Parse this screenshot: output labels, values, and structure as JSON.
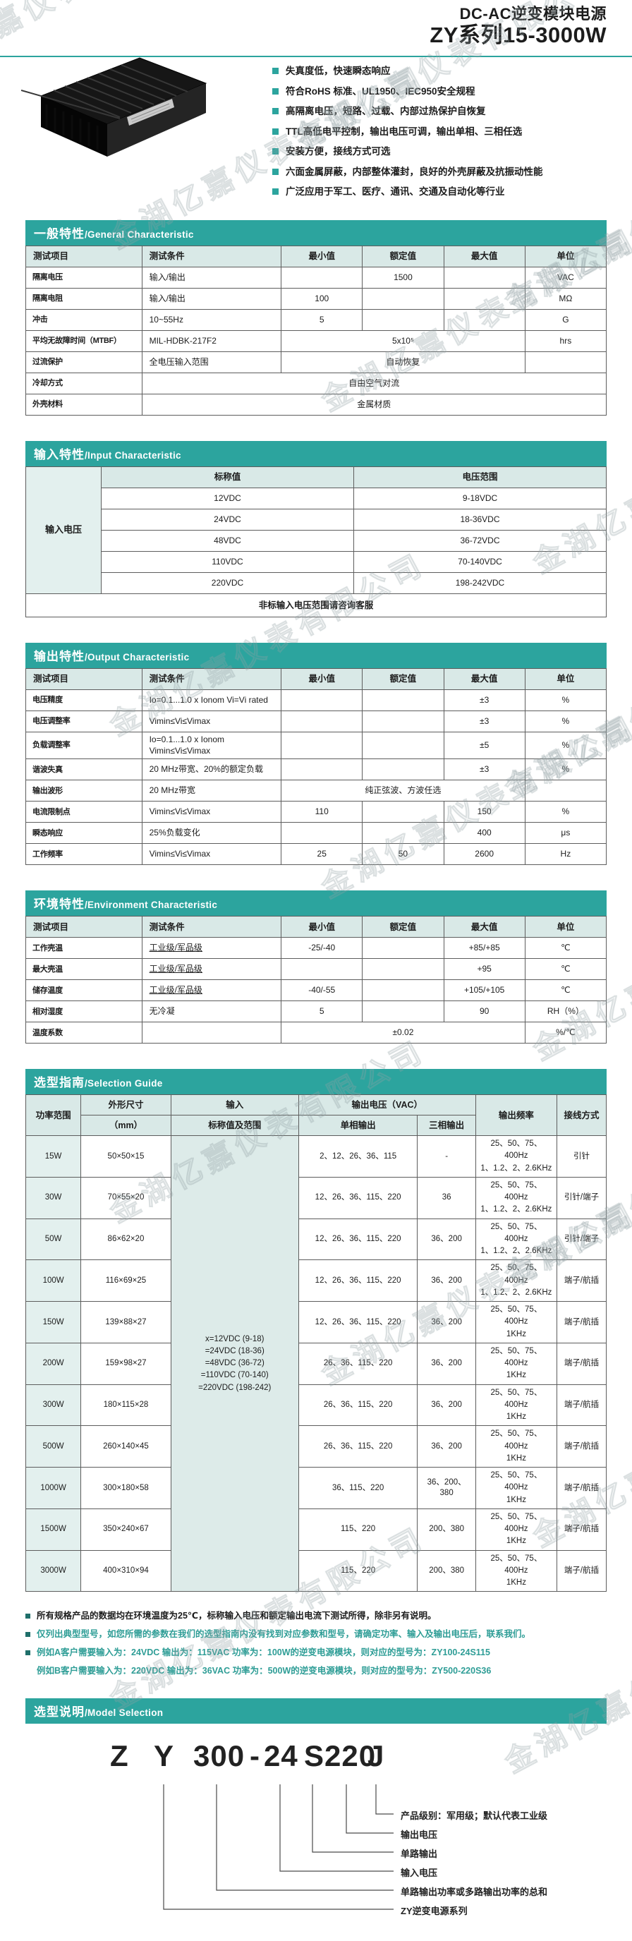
{
  "watermark": "金湖亿嘉仪表有限公司",
  "header": {
    "title_line1": "DC-AC逆变模块电源",
    "title_line2": "ZY系列15-3000W",
    "features": [
      "失真度低，快速瞬态响应",
      "符合RoHS 标准、UL1950、IEC950安全规程",
      "高隔离电压，短路、过载、内部过热保护自恢复",
      "TTL高低电平控制，输出电压可调，输出单相、三相任选",
      "安装方便，接线方式可选",
      "六面金属屏蔽，内部整体灌封，良好的外壳屏蔽及抗振动性能",
      "广泛应用于军工、医疗、通讯、交通及自动化等行业"
    ]
  },
  "tables": {
    "general": {
      "title_zh": "一般特性",
      "title_en": "/General Characteristic",
      "col_widths": [
        "20%",
        "24%",
        "14%",
        "14%",
        "14%",
        "14%"
      ],
      "rows": [
        [
          {
            "t": "测试项目",
            "c": "th l"
          },
          {
            "t": "测试条件",
            "c": "th l"
          },
          {
            "t": "最小值",
            "c": "th"
          },
          {
            "t": "额定值",
            "c": "th"
          },
          {
            "t": "最大值",
            "c": "th"
          },
          {
            "t": "单位",
            "c": "th"
          }
        ],
        [
          {
            "t": "隔离电压",
            "c": "item"
          },
          {
            "t": "输入/输出",
            "c": "l"
          },
          {
            "t": ""
          },
          {
            "t": "1500"
          },
          {
            "t": ""
          },
          {
            "t": "VAC"
          }
        ],
        [
          {
            "t": "隔离电阻",
            "c": "item"
          },
          {
            "t": "输入/输出",
            "c": "l"
          },
          {
            "t": "100"
          },
          {
            "t": ""
          },
          {
            "t": ""
          },
          {
            "t": "MΩ"
          }
        ],
        [
          {
            "t": "冲击",
            "c": "item"
          },
          {
            "t": "10~55Hz",
            "c": "l"
          },
          {
            "t": "5"
          },
          {
            "t": ""
          },
          {
            "t": ""
          },
          {
            "t": "G"
          }
        ],
        [
          {
            "t": "平均无故障时间（MTBF）",
            "c": "item"
          },
          {
            "t": "MIL-HDBK-217F2",
            "c": "l"
          },
          {
            "t": "5x10⁵",
            "cs": 3
          },
          {
            "t": "hrs"
          }
        ],
        [
          {
            "t": "过流保护",
            "c": "item"
          },
          {
            "t": "全电压输入范围",
            "c": "l"
          },
          {
            "t": "自动恢复",
            "cs": 3
          },
          {
            "t": ""
          }
        ],
        [
          {
            "t": "冷却方式",
            "c": "item"
          },
          {
            "t": "自由空气对流",
            "cs": 5
          }
        ],
        [
          {
            "t": "外壳材料",
            "c": "item"
          },
          {
            "t": "金属材质",
            "cs": 5
          }
        ]
      ]
    },
    "input": {
      "title_zh": "输入特性",
      "title_en": "/Input Characteristic",
      "col_widths": [
        "13%",
        "43.5%",
        "43.5%"
      ],
      "rows": [
        [
          {
            "t": "输入电压",
            "rs": 6,
            "c": "side"
          },
          {
            "t": "标称值",
            "c": "th"
          },
          {
            "t": "电压范围",
            "c": "th"
          }
        ],
        [
          {
            "t": "12VDC"
          },
          {
            "t": "9-18VDC"
          }
        ],
        [
          {
            "t": "24VDC"
          },
          {
            "t": "18-36VDC"
          }
        ],
        [
          {
            "t": "48VDC"
          },
          {
            "t": "36-72VDC"
          }
        ],
        [
          {
            "t": "110VDC"
          },
          {
            "t": "70-140VDC"
          }
        ],
        [
          {
            "t": "220VDC"
          },
          {
            "t": "198-242VDC"
          }
        ],
        [
          {
            "t": "非标输入电压范围请咨询客服",
            "cs": 3,
            "c": "foot"
          }
        ]
      ]
    },
    "output": {
      "title_zh": "输出特性",
      "title_en": "/Output Characteristic",
      "col_widths": [
        "20%",
        "24%",
        "14%",
        "14%",
        "14%",
        "14%"
      ],
      "rows": [
        [
          {
            "t": "测试项目",
            "c": "th l"
          },
          {
            "t": "测试条件",
            "c": "th l"
          },
          {
            "t": "最小值",
            "c": "th"
          },
          {
            "t": "额定值",
            "c": "th"
          },
          {
            "t": "最大值",
            "c": "th"
          },
          {
            "t": "单位",
            "c": "th"
          }
        ],
        [
          {
            "t": "电压精度",
            "c": "item"
          },
          {
            "t": "Io=0.1...1.0 x Ionom Vi=Vi rated",
            "c": "l"
          },
          {
            "t": ""
          },
          {
            "t": ""
          },
          {
            "t": "±3"
          },
          {
            "t": "%"
          }
        ],
        [
          {
            "t": "电压调整率",
            "c": "item"
          },
          {
            "t": "Vimin≤Vi≤Vimax",
            "c": "l"
          },
          {
            "t": ""
          },
          {
            "t": ""
          },
          {
            "t": "±3"
          },
          {
            "t": "%"
          }
        ],
        [
          {
            "t": "负载调整率",
            "c": "item"
          },
          {
            "t": "Io=0.1...1.0 x Ionom Vimin≤Vi≤Vimax",
            "c": "l"
          },
          {
            "t": ""
          },
          {
            "t": ""
          },
          {
            "t": "±5"
          },
          {
            "t": "%"
          }
        ],
        [
          {
            "t": "谐波失真",
            "c": "item"
          },
          {
            "t": "20 MHz带宽、20%的额定负载",
            "c": "l"
          },
          {
            "t": ""
          },
          {
            "t": ""
          },
          {
            "t": "±3"
          },
          {
            "t": "%"
          }
        ],
        [
          {
            "t": "输出波形",
            "c": "item"
          },
          {
            "t": "20 MHz带宽",
            "c": "l"
          },
          {
            "t": "纯正弦波、方波任选",
            "cs": 3
          },
          {
            "t": ""
          }
        ],
        [
          {
            "t": "电流限制点",
            "c": "item"
          },
          {
            "t": "Vimin≤Vi≤Vimax",
            "c": "l"
          },
          {
            "t": "110"
          },
          {
            "t": ""
          },
          {
            "t": "150"
          },
          {
            "t": "%"
          }
        ],
        [
          {
            "t": "瞬态响应",
            "c": "item"
          },
          {
            "t": "25%负载变化",
            "c": "l"
          },
          {
            "t": ""
          },
          {
            "t": ""
          },
          {
            "t": "400"
          },
          {
            "t": "μs"
          }
        ],
        [
          {
            "t": "工作频率",
            "c": "item"
          },
          {
            "t": "Vimin≤Vi≤Vimax",
            "c": "l"
          },
          {
            "t": "25"
          },
          {
            "t": "50"
          },
          {
            "t": "2600"
          },
          {
            "t": "Hz"
          }
        ]
      ]
    },
    "environment": {
      "title_zh": "环境特性",
      "title_en": "/Environment Characteristic",
      "col_widths": [
        "20%",
        "24%",
        "14%",
        "14%",
        "14%",
        "14%"
      ],
      "rows": [
        [
          {
            "t": "测试项目",
            "c": "th l"
          },
          {
            "t": "测试条件",
            "c": "th l"
          },
          {
            "t": "最小值",
            "c": "th"
          },
          {
            "t": "额定值",
            "c": "th"
          },
          {
            "t": "最大值",
            "c": "th"
          },
          {
            "t": "单位",
            "c": "th"
          }
        ],
        [
          {
            "t": "工作壳温",
            "c": "item"
          },
          {
            "t": "工业级/军品级",
            "c": "l ul"
          },
          {
            "t": "-25/-40"
          },
          {
            "t": ""
          },
          {
            "t": "+85/+85"
          },
          {
            "t": "℃"
          }
        ],
        [
          {
            "t": "最大壳温",
            "c": "item"
          },
          {
            "t": "工业级/军品级",
            "c": "l ul"
          },
          {
            "t": ""
          },
          {
            "t": ""
          },
          {
            "t": "+95"
          },
          {
            "t": "℃"
          }
        ],
        [
          {
            "t": "储存温度",
            "c": "item"
          },
          {
            "t": "工业级/军品级",
            "c": "l ul"
          },
          {
            "t": "-40/-55"
          },
          {
            "t": ""
          },
          {
            "t": "+105/+105"
          },
          {
            "t": "℃"
          }
        ],
        [
          {
            "t": "相对湿度",
            "c": "item"
          },
          {
            "t": "无冷凝",
            "c": "l"
          },
          {
            "t": "5"
          },
          {
            "t": ""
          },
          {
            "t": "90"
          },
          {
            "t": "RH（%）"
          }
        ],
        [
          {
            "t": "温度系数",
            "c": "item"
          },
          {
            "t": ""
          },
          {
            "t": "±0.02",
            "cs": 3
          },
          {
            "t": "%/℃"
          }
        ]
      ]
    },
    "selection_guide": {
      "title_zh": "选型指南",
      "title_en": "/Selection Guide",
      "col_widths": [
        "9.5%",
        "15.5%",
        "22%",
        "20.5%",
        "10%",
        "14%",
        "8.5%"
      ],
      "rows": [
        [
          {
            "t": "功率范围",
            "rs": 2,
            "c": "th"
          },
          {
            "t": "外形尺寸",
            "c": "th"
          },
          {
            "t": "输入",
            "c": "th"
          },
          {
            "t": "输出电压（VAC）",
            "cs": 2,
            "c": "th"
          },
          {
            "t": "输出频率",
            "rs": 2,
            "c": "th"
          },
          {
            "t": "接线方式",
            "rs": 2,
            "c": "th"
          }
        ],
        [
          {
            "t": "（mm）",
            "c": "th"
          },
          {
            "t": "标称值及范围",
            "c": "th"
          },
          {
            "t": "单相输出",
            "c": "th"
          },
          {
            "t": "三相输出",
            "c": "th"
          }
        ],
        [
          {
            "t": "15W",
            "c": "pw"
          },
          {
            "t": "50×50×15"
          },
          {
            "t": "x=12VDC  (9-18)\n=24VDC  (18-36)\n=48VDC  (36-72)\n=110VDC  (70-140)\n=220VDC  (198-242)",
            "rs": 11,
            "c": "ic pre"
          },
          {
            "t": "2、12、26、36、115"
          },
          {
            "t": "-"
          },
          {
            "t": "25、50、75、400Hz\n1、1.2、2、2.6KHz",
            "c": "pre"
          },
          {
            "t": "引针"
          }
        ],
        [
          {
            "t": "30W",
            "c": "pw"
          },
          {
            "t": "70×55×20"
          },
          {
            "t": "12、26、36、115、220"
          },
          {
            "t": "36"
          },
          {
            "t": "25、50、75、400Hz\n1、1.2、2、2.6KHz",
            "c": "pre"
          },
          {
            "t": "引针/端子"
          }
        ],
        [
          {
            "t": "50W",
            "c": "pw"
          },
          {
            "t": "86×62×20"
          },
          {
            "t": "12、26、36、115、220"
          },
          {
            "t": "36、200"
          },
          {
            "t": "25、50、75、400Hz\n1、1.2、2、2.6KHz",
            "c": "pre"
          },
          {
            "t": "引针/端子"
          }
        ],
        [
          {
            "t": "100W",
            "c": "pw"
          },
          {
            "t": "116×69×25"
          },
          {
            "t": "12、26、36、115、220"
          },
          {
            "t": "36、200"
          },
          {
            "t": "25、50、75、400Hz\n1、1.2、2、2.6KHz",
            "c": "pre"
          },
          {
            "t": "端子/航插"
          }
        ],
        [
          {
            "t": "150W",
            "c": "pw"
          },
          {
            "t": "139×88×27"
          },
          {
            "t": "12、26、36、115、220"
          },
          {
            "t": "36、200"
          },
          {
            "t": "25、50、75、400Hz\n1KHz",
            "c": "pre"
          },
          {
            "t": "端子/航插"
          }
        ],
        [
          {
            "t": "200W",
            "c": "pw"
          },
          {
            "t": "159×98×27"
          },
          {
            "t": "26、36、115、220"
          },
          {
            "t": "36、200"
          },
          {
            "t": "25、50、75、400Hz\n1KHz",
            "c": "pre"
          },
          {
            "t": "端子/航插"
          }
        ],
        [
          {
            "t": "300W",
            "c": "pw"
          },
          {
            "t": "180×115×28"
          },
          {
            "t": "26、36、115、220"
          },
          {
            "t": "36、200"
          },
          {
            "t": "25、50、75、400Hz\n1KHz",
            "c": "pre"
          },
          {
            "t": "端子/航插"
          }
        ],
        [
          {
            "t": "500W",
            "c": "pw"
          },
          {
            "t": "260×140×45"
          },
          {
            "t": "26、36、115、220"
          },
          {
            "t": "36、200"
          },
          {
            "t": "25、50、75、400Hz\n1KHz",
            "c": "pre"
          },
          {
            "t": "端子/航插"
          }
        ],
        [
          {
            "t": "1000W",
            "c": "pw"
          },
          {
            "t": "300×180×58"
          },
          {
            "t": "36、115、220"
          },
          {
            "t": "36、200、380"
          },
          {
            "t": "25、50、75、400Hz\n1KHz",
            "c": "pre"
          },
          {
            "t": "端子/航插"
          }
        ],
        [
          {
            "t": "1500W",
            "c": "pw"
          },
          {
            "t": "350×240×67"
          },
          {
            "t": "115、220"
          },
          {
            "t": "200、380"
          },
          {
            "t": "25、50、75、400Hz\n1KHz",
            "c": "pre"
          },
          {
            "t": "端子/航插"
          }
        ],
        [
          {
            "t": "3000W",
            "c": "pw"
          },
          {
            "t": "400×310×94"
          },
          {
            "t": "115、220"
          },
          {
            "t": "200、380"
          },
          {
            "t": "25、50、75、400Hz\n1KHz",
            "c": "pre"
          },
          {
            "t": "端子/航插"
          }
        ]
      ]
    }
  },
  "notes": [
    {
      "text": "所有规格产品的数据均在环境温度为25℃，标称输入电压和额定输出电流下测试所得，除非另有说明。",
      "teal": false,
      "bullet": true
    },
    {
      "text": "仅列出典型型号，如您所需的参数在我们的选型指南内没有找到对应参数和型号，请确定功率、输入及输出电压后，联系我们。",
      "teal": true,
      "bullet": true
    },
    {
      "text": "例如A客户需要输入为：24VDC 输出为：115VAC 功率为：100W的逆变电源模块，则对应的型号为：ZY100-24S115",
      "teal": true,
      "bullet": true
    },
    {
      "text": "例如B客户需要输入为：220VDC 输出为：36VAC 功率为：500W的逆变电源模块，则对应的型号为：ZY500-220S36",
      "teal": true,
      "bullet": false
    }
  ],
  "model": {
    "title_zh": "选型说明",
    "title_en": "/Model Selection",
    "code_parts": [
      "Z",
      "Y",
      "300",
      "-",
      "24",
      "S220",
      "J"
    ],
    "labels": [
      "产品级别：军用级；默认代表工业级",
      "输出电压",
      "单路输出",
      "输入电压",
      "单路输出功率或多路输出功率的总和",
      "ZY逆变电源系列"
    ]
  }
}
